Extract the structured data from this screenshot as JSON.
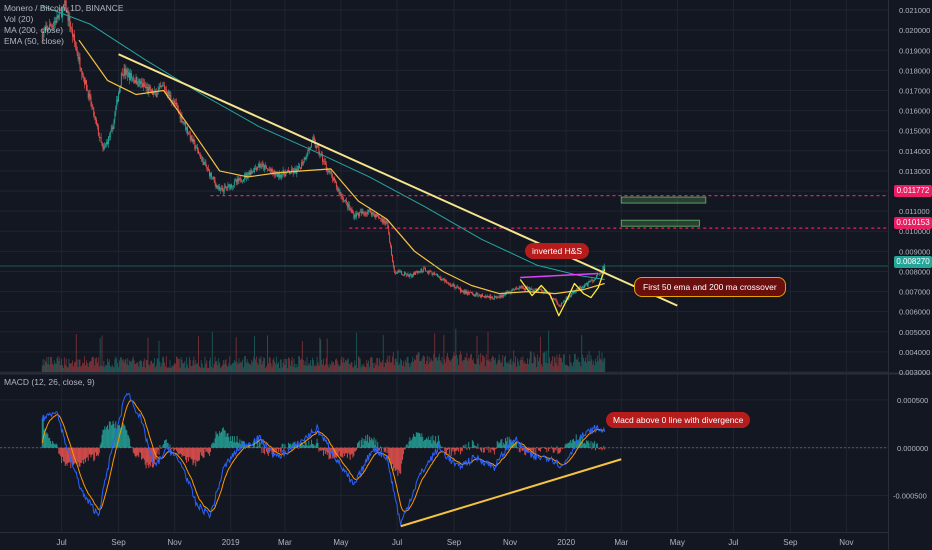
{
  "header": {
    "symbol_line": "Monero / Bitcoin, 1D, BINANCE",
    "indicators": [
      "Vol (20)",
      "MA (200, close)",
      "EMA (50, close)"
    ]
  },
  "macd_legend": "MACD (12, 26, close, 9)",
  "colors": {
    "background": "#131722",
    "up": "#26a69a",
    "down": "#ef5350",
    "ema": "#f5c343",
    "ma": "#26a6a0",
    "trendline": "#f6e58d",
    "resistance": "#e91e63",
    "target": "#66bb6a",
    "macd_line": "#2962ff",
    "signal_line": "#ff9800"
  },
  "chart_data": [
    {
      "type": "candlestick",
      "title": "Monero / Bitcoin, 1D, BINANCE",
      "y_axis_ticks": [
        0.021,
        0.02,
        0.019,
        0.018,
        0.017,
        0.016,
        0.015,
        0.014,
        0.013,
        0.012,
        0.011,
        0.01,
        0.009,
        0.008,
        0.007,
        0.006,
        0.005,
        0.004,
        0.003
      ],
      "y_axis_labels": [
        "0.021000",
        "0.020000",
        "0.019000",
        "0.018000",
        "0.017000",
        "0.016000",
        "0.015000",
        "0.014000",
        "0.013000",
        "0.012000",
        "0.011000",
        "0.010000",
        "0.009000",
        "0.008000",
        "0.007000",
        "0.006000",
        "0.005000",
        "0.004000",
        "0.003000"
      ],
      "ylim": [
        0.003,
        0.0213
      ],
      "x_axis_labels": [
        "Jul",
        "Sep",
        "Nov",
        "2019",
        "Mar",
        "May",
        "Jul",
        "Sep",
        "Nov",
        "2020",
        "Mar",
        "May",
        "Jul",
        "Sep",
        "Nov"
      ],
      "x_axis_dates": [
        "2018-07",
        "2018-09",
        "2018-11",
        "2019-01",
        "2019-03",
        "2019-05",
        "2019-07",
        "2019-09",
        "2019-11",
        "2020-01",
        "2020-03",
        "2020-05",
        "2020-07",
        "2020-09",
        "2020-11"
      ],
      "price_path": [
        {
          "date": "2018-06-10",
          "price": 0.0198
        },
        {
          "date": "2018-06-25",
          "price": 0.0205
        },
        {
          "date": "2018-07-05",
          "price": 0.0212
        },
        {
          "date": "2018-07-20",
          "price": 0.0185
        },
        {
          "date": "2018-08-01",
          "price": 0.0165
        },
        {
          "date": "2018-08-15",
          "price": 0.014
        },
        {
          "date": "2018-08-25",
          "price": 0.015
        },
        {
          "date": "2018-09-05",
          "price": 0.018
        },
        {
          "date": "2018-09-20",
          "price": 0.0175
        },
        {
          "date": "2018-10-10",
          "price": 0.0168
        },
        {
          "date": "2018-10-20",
          "price": 0.0172
        },
        {
          "date": "2018-11-05",
          "price": 0.016
        },
        {
          "date": "2018-11-20",
          "price": 0.0145
        },
        {
          "date": "2018-12-05",
          "price": 0.0132
        },
        {
          "date": "2018-12-20",
          "price": 0.012
        },
        {
          "date": "2019-01-10",
          "price": 0.0125
        },
        {
          "date": "2019-02-01",
          "price": 0.0133
        },
        {
          "date": "2019-02-20",
          "price": 0.0128
        },
        {
          "date": "2019-03-15",
          "price": 0.013
        },
        {
          "date": "2019-04-01",
          "price": 0.0145
        },
        {
          "date": "2019-04-15",
          "price": 0.0132
        },
        {
          "date": "2019-05-01",
          "price": 0.0118
        },
        {
          "date": "2019-05-15",
          "price": 0.0108
        },
        {
          "date": "2019-06-01",
          "price": 0.011
        },
        {
          "date": "2019-06-20",
          "price": 0.0104
        },
        {
          "date": "2019-06-28",
          "price": 0.008
        },
        {
          "date": "2019-07-15",
          "price": 0.0078
        },
        {
          "date": "2019-08-01",
          "price": 0.0081
        },
        {
          "date": "2019-08-20",
          "price": 0.0076
        },
        {
          "date": "2019-09-10",
          "price": 0.007
        },
        {
          "date": "2019-10-01",
          "price": 0.0068
        },
        {
          "date": "2019-10-20",
          "price": 0.0067
        },
        {
          "date": "2019-11-10",
          "price": 0.0072
        },
        {
          "date": "2019-11-25",
          "price": 0.0071
        },
        {
          "date": "2019-12-10",
          "price": 0.007
        },
        {
          "date": "2019-12-25",
          "price": 0.0063
        },
        {
          "date": "2020-01-10",
          "price": 0.007
        },
        {
          "date": "2020-01-25",
          "price": 0.0074
        },
        {
          "date": "2020-02-05",
          "price": 0.0078
        },
        {
          "date": "2020-02-12",
          "price": 0.00827
        }
      ],
      "ema_50_path": [
        {
          "date": "2018-07-20",
          "price": 0.0195
        },
        {
          "date": "2018-08-20",
          "price": 0.0175
        },
        {
          "date": "2018-09-20",
          "price": 0.0168
        },
        {
          "date": "2018-10-20",
          "price": 0.017
        },
        {
          "date": "2018-11-20",
          "price": 0.015
        },
        {
          "date": "2018-12-20",
          "price": 0.013
        },
        {
          "date": "2019-01-20",
          "price": 0.0127
        },
        {
          "date": "2019-02-20",
          "price": 0.0129
        },
        {
          "date": "2019-03-20",
          "price": 0.013
        },
        {
          "date": "2019-04-20",
          "price": 0.0131
        },
        {
          "date": "2019-05-20",
          "price": 0.0115
        },
        {
          "date": "2019-06-20",
          "price": 0.0106
        },
        {
          "date": "2019-07-20",
          "price": 0.009
        },
        {
          "date": "2019-08-20",
          "price": 0.008
        },
        {
          "date": "2019-09-20",
          "price": 0.0073
        },
        {
          "date": "2019-10-20",
          "price": 0.0069
        },
        {
          "date": "2019-11-20",
          "price": 0.007
        },
        {
          "date": "2019-12-20",
          "price": 0.0069
        },
        {
          "date": "2020-01-20",
          "price": 0.0071
        },
        {
          "date": "2020-02-12",
          "price": 0.0074
        }
      ],
      "ma_200_path": [
        {
          "date": "2018-06-10",
          "price": 0.0212
        },
        {
          "date": "2018-08-01",
          "price": 0.0203
        },
        {
          "date": "2018-10-01",
          "price": 0.0185
        },
        {
          "date": "2018-12-01",
          "price": 0.0168
        },
        {
          "date": "2019-02-01",
          "price": 0.0152
        },
        {
          "date": "2019-04-01",
          "price": 0.014
        },
        {
          "date": "2019-06-01",
          "price": 0.0127
        },
        {
          "date": "2019-08-01",
          "price": 0.0112
        },
        {
          "date": "2019-10-01",
          "price": 0.0096
        },
        {
          "date": "2019-12-01",
          "price": 0.0083
        },
        {
          "date": "2020-01-15",
          "price": 0.0078
        },
        {
          "date": "2020-02-12",
          "price": 0.0076
        }
      ],
      "trendline": [
        {
          "date": "2018-09-01",
          "price": 0.0188
        },
        {
          "date": "2020-05-01",
          "price": 0.0063
        }
      ],
      "horizontal_levels": [
        {
          "from": "2018-12-10",
          "price": 0.011772,
          "label": "0.011772"
        },
        {
          "from": "2019-05-10",
          "price": 0.010153,
          "label": "0.010153"
        }
      ],
      "current_price": {
        "price": 0.00827,
        "label": "0.008270"
      },
      "target_zones": [
        {
          "from": "2020-03-01",
          "to": "2020-06-01",
          "price": 0.01155
        },
        {
          "from": "2020-03-01",
          "to": "2020-05-25",
          "price": 0.0104
        }
      ],
      "neckline": [
        {
          "date": "2019-11-12",
          "price": 0.0077
        },
        {
          "date": "2020-02-05",
          "price": 0.0079
        }
      ],
      "annotations": [
        "inverted H&S",
        "First 50 ema and 200 ma crossover"
      ]
    },
    {
      "type": "bar",
      "title": "Vol (20)",
      "note": "volume histogram along bottom of price pane"
    },
    {
      "type": "line",
      "title": "MACD (12, 26, close, 9)",
      "y_axis_ticks": [
        0.0005,
        0.0,
        -0.0005
      ],
      "y_axis_labels": [
        "0.000500",
        "0.000000",
        "-0.000500"
      ],
      "ylim": [
        -0.00088,
        0.00075
      ],
      "macd_path": [
        {
          "date": "2018-06-10",
          "v": 0.0003
        },
        {
          "date": "2018-06-25",
          "v": 0.0004
        },
        {
          "date": "2018-07-10",
          "v": -0.0001
        },
        {
          "date": "2018-07-25",
          "v": -0.0005
        },
        {
          "date": "2018-08-10",
          "v": -0.0007
        },
        {
          "date": "2018-08-25",
          "v": 0.0
        },
        {
          "date": "2018-09-10",
          "v": 0.0006
        },
        {
          "date": "2018-09-25",
          "v": 0.0003
        },
        {
          "date": "2018-10-10",
          "v": -0.0002
        },
        {
          "date": "2018-10-25",
          "v": 0.0
        },
        {
          "date": "2018-11-10",
          "v": -0.0002
        },
        {
          "date": "2018-11-25",
          "v": -0.0006
        },
        {
          "date": "2018-12-10",
          "v": -0.0007
        },
        {
          "date": "2018-12-25",
          "v": -0.0002
        },
        {
          "date": "2019-01-10",
          "v": 0.0
        },
        {
          "date": "2019-02-01",
          "v": 0.0001
        },
        {
          "date": "2019-02-20",
          "v": -0.0001
        },
        {
          "date": "2019-03-10",
          "v": 0.0
        },
        {
          "date": "2019-04-05",
          "v": 0.0002
        },
        {
          "date": "2019-04-25",
          "v": -0.0001
        },
        {
          "date": "2019-05-15",
          "v": -0.0004
        },
        {
          "date": "2019-06-05",
          "v": 0.0
        },
        {
          "date": "2019-06-20",
          "v": -0.0001
        },
        {
          "date": "2019-07-05",
          "v": -0.0008
        },
        {
          "date": "2019-07-25",
          "v": -0.0003
        },
        {
          "date": "2019-08-15",
          "v": 0.0
        },
        {
          "date": "2019-09-05",
          "v": -0.0002
        },
        {
          "date": "2019-09-25",
          "v": -0.0001
        },
        {
          "date": "2019-10-15",
          "v": -0.0002
        },
        {
          "date": "2019-11-05",
          "v": 0.0001
        },
        {
          "date": "2019-11-25",
          "v": -0.0001
        },
        {
          "date": "2019-12-15",
          "v": -0.0001
        },
        {
          "date": "2019-12-28",
          "v": -0.0002
        },
        {
          "date": "2020-01-15",
          "v": 0.0001
        },
        {
          "date": "2020-02-01",
          "v": 0.0002
        },
        {
          "date": "2020-02-12",
          "v": 0.00018
        }
      ],
      "divergence_line": [
        {
          "date": "2019-07-05",
          "v": -0.00082
        },
        {
          "date": "2020-03-01",
          "v": -0.00012
        }
      ],
      "annotations": [
        "Macd above 0 line with divergence"
      ]
    }
  ]
}
